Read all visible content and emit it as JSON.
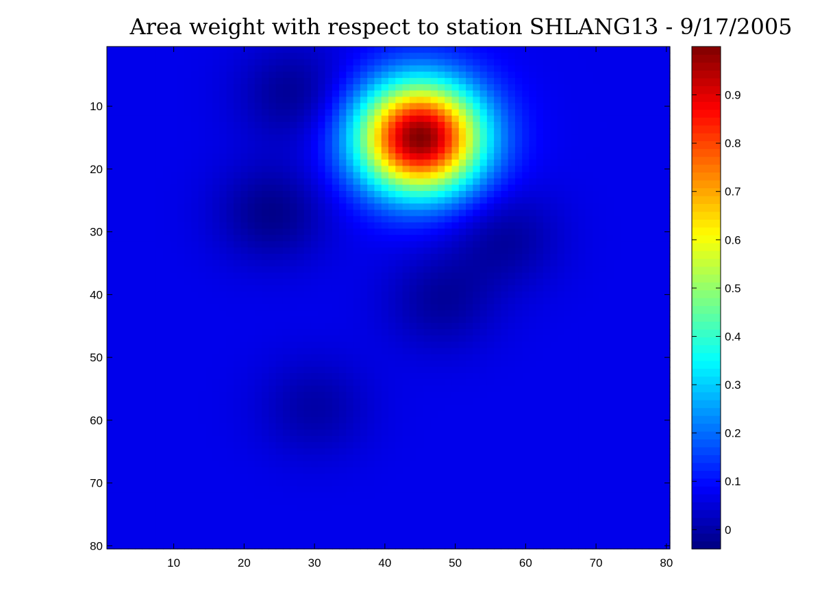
{
  "chart_data": {
    "type": "heatmap",
    "title": "Area weight with respect to station SHLANG13 - 9/17/2005",
    "xlabel": "",
    "ylabel": "",
    "grid_size": [
      80,
      80
    ],
    "xlim": [
      0.5,
      80.5
    ],
    "ylim": [
      0.5,
      80.5
    ],
    "y_direction": "top-to-bottom",
    "x_ticks": [
      10,
      20,
      30,
      40,
      50,
      60,
      70,
      80
    ],
    "y_ticks": [
      10,
      20,
      30,
      40,
      50,
      60,
      70,
      80
    ],
    "colormap": "jet",
    "color_limits": [
      -0.04,
      1.0
    ],
    "colorbar_ticks": [
      0,
      0.1,
      0.2,
      0.3,
      0.4,
      0.5,
      0.6,
      0.7,
      0.8,
      0.9
    ],
    "colorbar_tick_labels": [
      "0",
      "0.1",
      "0.2",
      "0.3",
      "0.4",
      "0.5",
      "0.6",
      "0.7",
      "0.8",
      "0.9"
    ],
    "colorbar_position": "right",
    "background_level": 0.07,
    "peak": {
      "x": 45,
      "y": 15,
      "value": 1.0,
      "spread": 6.2
    },
    "low_regions": [
      {
        "x": 27,
        "y": 8,
        "value": -0.02
      },
      {
        "x": 24,
        "y": 27,
        "value": -0.03
      },
      {
        "x": 57,
        "y": 31,
        "value": -0.01
      },
      {
        "x": 48,
        "y": 41,
        "value": -0.01
      },
      {
        "x": 30,
        "y": 58,
        "value": 0.0
      }
    ]
  }
}
